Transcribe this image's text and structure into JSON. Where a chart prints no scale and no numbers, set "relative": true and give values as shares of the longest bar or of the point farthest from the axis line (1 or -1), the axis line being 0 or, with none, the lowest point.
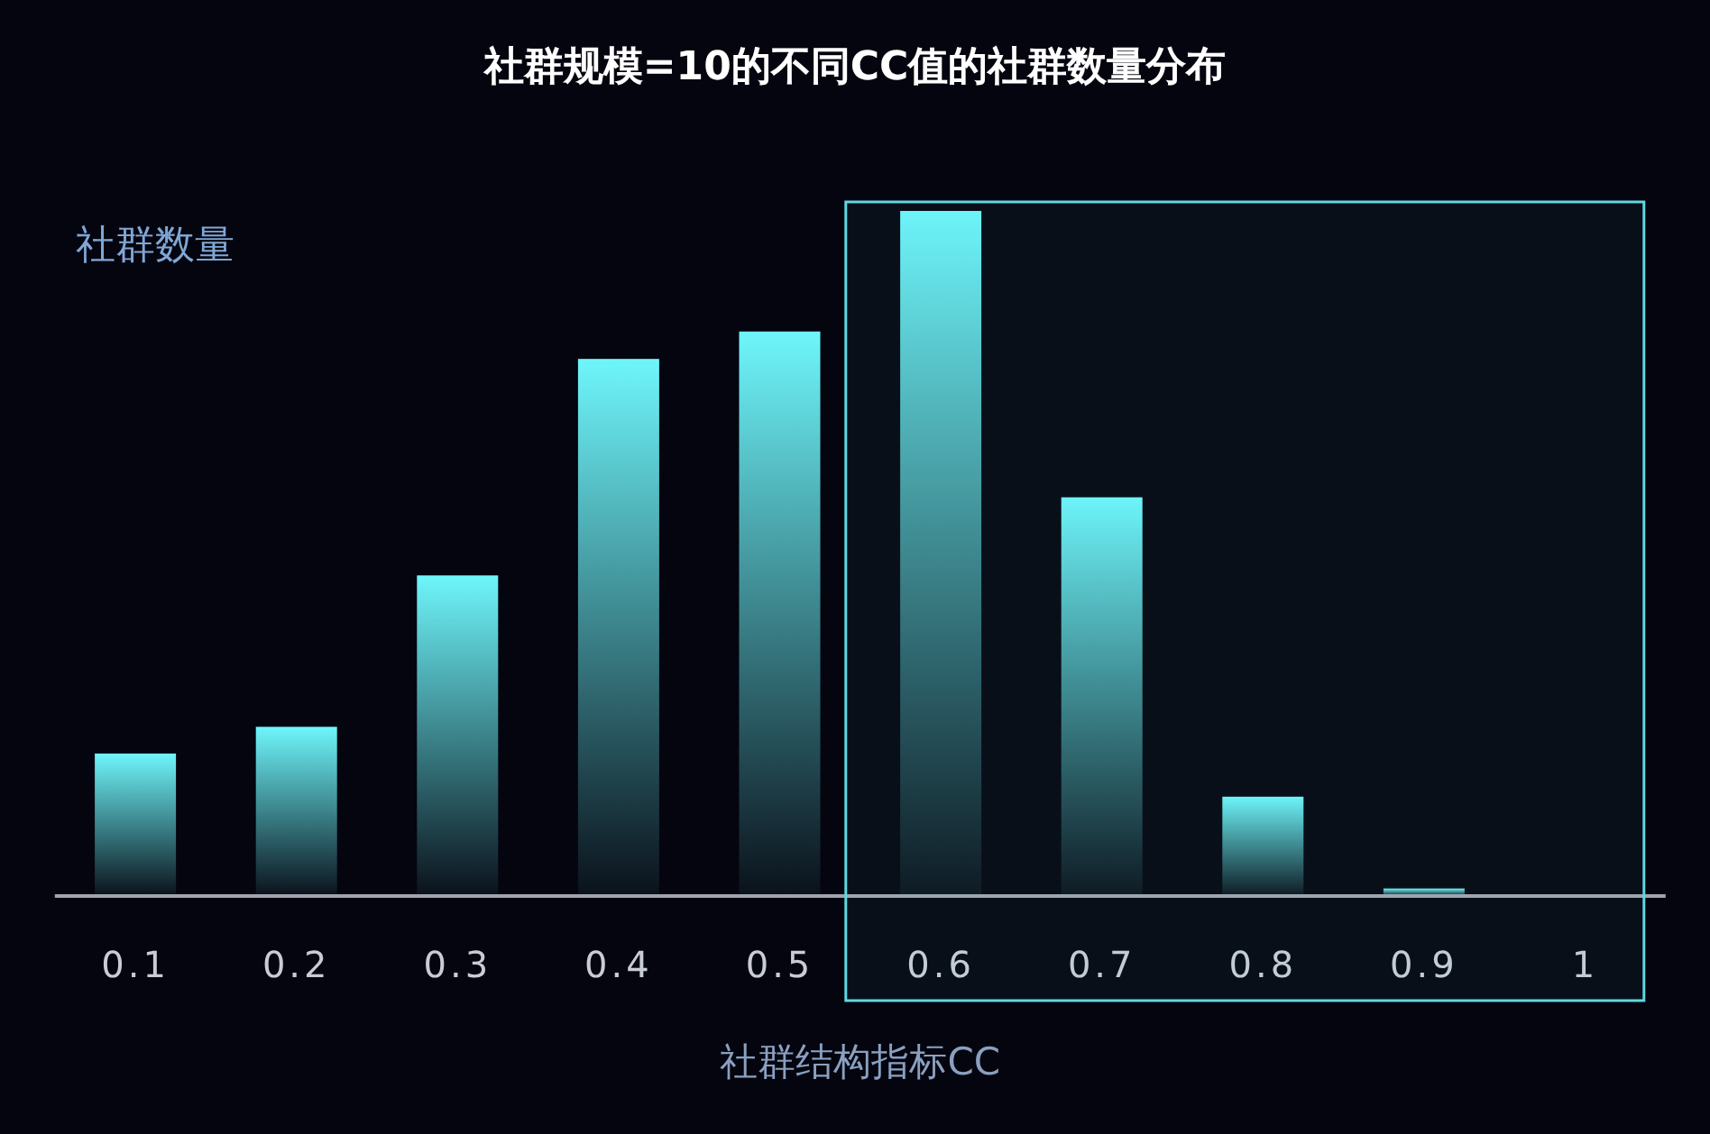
{
  "chart_data": {
    "type": "bar",
    "title": "社群规模=10的不同CC值的社群数量分布",
    "xlabel": "社群结构指标CC",
    "ylabel": "社群数量",
    "relative": true,
    "categories": [
      "0.1",
      "0.2",
      "0.3",
      "0.4",
      "0.5",
      "0.6",
      "0.7",
      "0.8",
      "0.9",
      "1"
    ],
    "values": [
      0.208,
      0.247,
      0.468,
      0.784,
      0.824,
      1,
      0.582,
      0.145,
      0.011,
      0
    ],
    "color": "#6ef6fb",
    "bands": [
      {
        "axis": "x",
        "from": "0.6",
        "to": "1",
        "color": "#5fd8df"
      }
    ]
  }
}
